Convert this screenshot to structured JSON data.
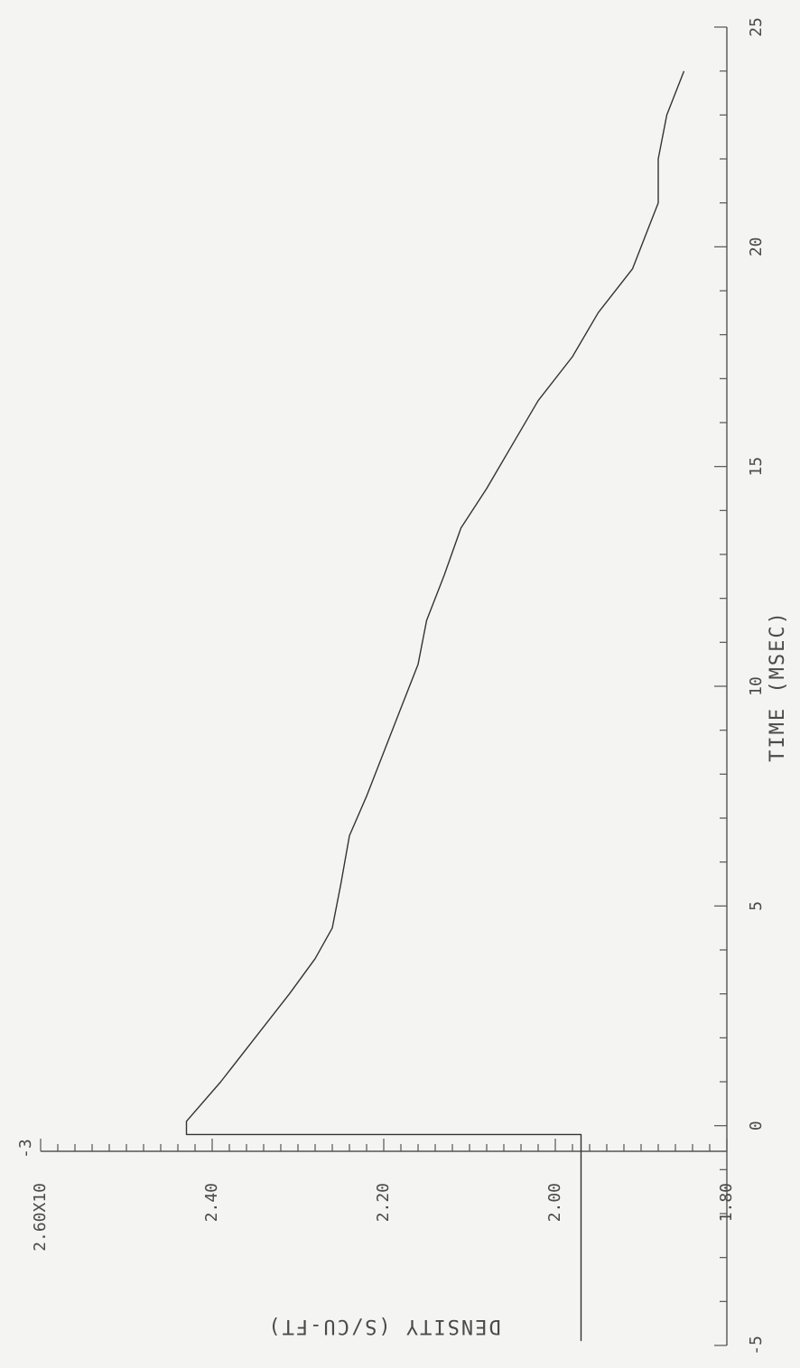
{
  "chart_data": {
    "type": "line",
    "orientation": "rotated-90-ccw",
    "xlabel": "TIME (MSEC)",
    "ylabel": "DENSITY (S/CU-FT)",
    "xlim": [
      -5,
      25
    ],
    "ylim": [
      1.8,
      2.6
    ],
    "x_major_ticks": [
      -5,
      0,
      5,
      10,
      15,
      20,
      25
    ],
    "x_tick_labels": [
      "-5",
      "0",
      "5",
      "10",
      "15",
      "20",
      "25"
    ],
    "y_major_ticks": [
      1.8,
      2.0,
      2.2,
      2.4,
      2.6
    ],
    "y_tick_labels": [
      "1.80",
      "2.00",
      "2.20",
      "2.40",
      "2.60X10"
    ],
    "y_exponent": "-3",
    "grid": false,
    "series": [
      {
        "x": [
          -4.9,
          -0.2,
          -0.2,
          0.1,
          1.0,
          2.0,
          3.0,
          3.8,
          4.5,
          5.5,
          6.6,
          7.5,
          8.5,
          9.5,
          10.5,
          11.5,
          12.5,
          13.6,
          14.5,
          15.5,
          16.5,
          17.5,
          18.5,
          19.5,
          20.5,
          21.0,
          22.0,
          23.0,
          24.0
        ],
        "y": [
          1.97,
          1.97,
          2.43,
          2.43,
          2.39,
          2.35,
          2.31,
          2.28,
          2.26,
          2.25,
          2.24,
          2.22,
          2.2,
          2.18,
          2.16,
          2.15,
          2.13,
          2.11,
          2.08,
          2.05,
          2.02,
          1.98,
          1.95,
          1.91,
          1.89,
          1.88,
          1.88,
          1.87,
          1.85
        ]
      }
    ]
  }
}
